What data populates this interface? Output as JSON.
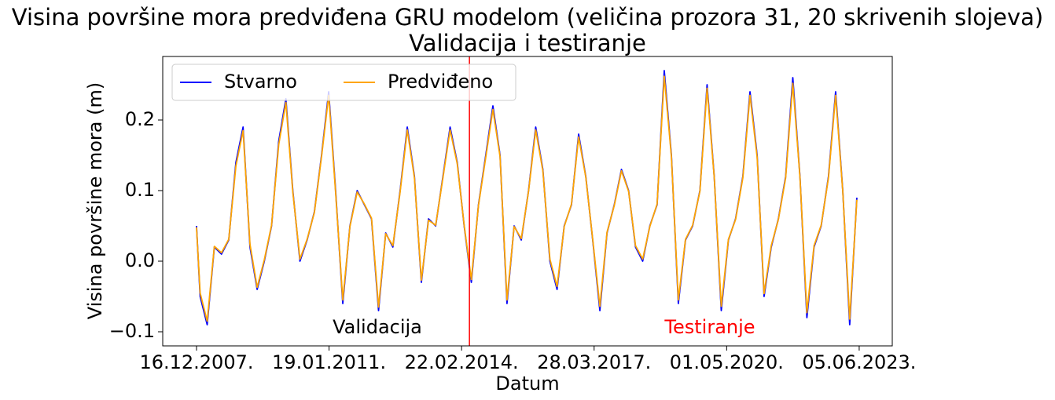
{
  "chart_data": {
    "type": "line",
    "title": "Visina površine mora predviđena GRU modelom (veličina prozora 31, 20 skrivenih slojeva)",
    "subtitle": "Validacija i testiranje",
    "x_label": "Datum",
    "y_label": "Visina površine mora (m)",
    "x": [
      "2007-12-16",
      "2008-01-16",
      "2008-03-16",
      "2008-05-16",
      "2008-07-16",
      "2008-09-16",
      "2008-11-16",
      "2009-01-16",
      "2009-03-16",
      "2009-05-16",
      "2009-07-16",
      "2009-09-16",
      "2009-11-16",
      "2010-01-16",
      "2010-03-16",
      "2010-05-16",
      "2010-07-16",
      "2010-09-16",
      "2010-11-16",
      "2011-01-16",
      "2011-03-16",
      "2011-05-16",
      "2011-07-16",
      "2011-09-16",
      "2011-11-16",
      "2012-01-16",
      "2012-03-16",
      "2012-05-16",
      "2012-07-16",
      "2012-09-16",
      "2012-11-16",
      "2013-01-16",
      "2013-03-16",
      "2013-05-16",
      "2013-07-16",
      "2013-09-16",
      "2013-11-16",
      "2014-01-16",
      "2014-03-16",
      "2014-05-16",
      "2014-07-16",
      "2014-09-16",
      "2014-11-16",
      "2015-01-16",
      "2015-03-16",
      "2015-05-16",
      "2015-07-16",
      "2015-09-16",
      "2015-11-16",
      "2016-01-16",
      "2016-03-16",
      "2016-05-16",
      "2016-07-16",
      "2016-09-16",
      "2016-11-16",
      "2017-01-16",
      "2017-03-16",
      "2017-05-16",
      "2017-07-16",
      "2017-09-16",
      "2017-11-16",
      "2018-01-16",
      "2018-03-16",
      "2018-05-16",
      "2018-07-16",
      "2018-09-16",
      "2018-11-16",
      "2019-01-16",
      "2019-03-16",
      "2019-05-16",
      "2019-07-16",
      "2019-09-16",
      "2019-11-16",
      "2020-01-16",
      "2020-03-16",
      "2020-05-16",
      "2020-07-16",
      "2020-09-16",
      "2020-11-16",
      "2021-01-16",
      "2021-03-16",
      "2021-05-16",
      "2021-07-16",
      "2021-09-16",
      "2021-11-16",
      "2022-01-16",
      "2022-03-16",
      "2022-05-16",
      "2022-07-16",
      "2022-09-16",
      "2022-11-16",
      "2023-01-16",
      "2023-03-16",
      "2023-05-16"
    ],
    "series": [
      {
        "name": "Stvarno",
        "color": "blue",
        "values": [
          0.05,
          -0.05,
          -0.09,
          0.02,
          0.01,
          0.03,
          0.14,
          0.19,
          0.02,
          -0.04,
          0.0,
          0.05,
          0.17,
          0.23,
          0.1,
          0.0,
          0.03,
          0.07,
          0.15,
          0.24,
          0.1,
          -0.06,
          0.05,
          0.1,
          0.08,
          0.06,
          -0.07,
          0.04,
          0.02,
          0.1,
          0.19,
          0.12,
          -0.03,
          0.06,
          0.05,
          0.12,
          0.19,
          0.14,
          0.05,
          -0.03,
          0.08,
          0.15,
          0.22,
          0.15,
          -0.06,
          0.05,
          0.03,
          0.1,
          0.19,
          0.13,
          0.0,
          -0.04,
          0.05,
          0.08,
          0.18,
          0.12,
          0.03,
          -0.07,
          0.04,
          0.08,
          0.13,
          0.1,
          0.02,
          0.0,
          0.05,
          0.08,
          0.27,
          0.15,
          -0.06,
          0.03,
          0.05,
          0.1,
          0.25,
          0.12,
          -0.07,
          0.03,
          0.06,
          0.12,
          0.24,
          0.15,
          -0.05,
          0.02,
          0.06,
          0.12,
          0.26,
          0.12,
          -0.08,
          0.02,
          0.05,
          0.12,
          0.24,
          0.1,
          -0.09,
          0.09
        ]
      },
      {
        "name": "Predviđeno",
        "color": "orange",
        "values": [
          0.048,
          -0.045,
          -0.085,
          0.021,
          0.012,
          0.031,
          0.135,
          0.185,
          0.024,
          -0.037,
          0.002,
          0.051,
          0.165,
          0.225,
          0.098,
          0.003,
          0.031,
          0.069,
          0.148,
          0.235,
          0.097,
          -0.055,
          0.049,
          0.098,
          0.081,
          0.061,
          -0.065,
          0.039,
          0.022,
          0.098,
          0.186,
          0.118,
          -0.027,
          0.058,
          0.051,
          0.118,
          0.186,
          0.138,
          0.051,
          -0.026,
          0.079,
          0.147,
          0.215,
          0.148,
          -0.055,
          0.049,
          0.032,
          0.099,
          0.186,
          0.128,
          0.003,
          -0.036,
          0.049,
          0.081,
          0.176,
          0.119,
          0.031,
          -0.064,
          0.041,
          0.079,
          0.128,
          0.099,
          0.022,
          0.003,
          0.049,
          0.081,
          0.262,
          0.148,
          -0.055,
          0.031,
          0.051,
          0.099,
          0.245,
          0.119,
          -0.064,
          0.031,
          0.059,
          0.118,
          0.235,
          0.147,
          -0.046,
          0.022,
          0.059,
          0.118,
          0.252,
          0.119,
          -0.073,
          0.022,
          0.051,
          0.118,
          0.235,
          0.099,
          -0.082,
          0.087
        ]
      }
    ],
    "vlines": [
      {
        "x": "2014-04-30",
        "color": "red"
      }
    ],
    "annotations": [
      {
        "text": "Validacija",
        "color": "black"
      },
      {
        "text": "Testiranje",
        "color": "red"
      }
    ],
    "xlim": [
      "2007-03-03",
      "2024-03-13"
    ],
    "xticks": [
      {
        "value": "2007-12-16",
        "label": "16.12.2007."
      },
      {
        "value": "2011-01-19",
        "label": "19.01.2011."
      },
      {
        "value": "2014-02-22",
        "label": "22.02.2014."
      },
      {
        "value": "2017-03-28",
        "label": "28.03.2017."
      },
      {
        "value": "2020-05-01",
        "label": "01.05.2020."
      },
      {
        "value": "2023-06-05",
        "label": "05.06.2023."
      }
    ],
    "ylim": [
      -0.12,
      0.29
    ],
    "yticks": [
      {
        "value": -0.1,
        "label": "−0.1"
      },
      {
        "value": 0,
        "label": "0.0"
      },
      0.1,
      0.2
    ],
    "grid": false,
    "legend": "upper left"
  }
}
